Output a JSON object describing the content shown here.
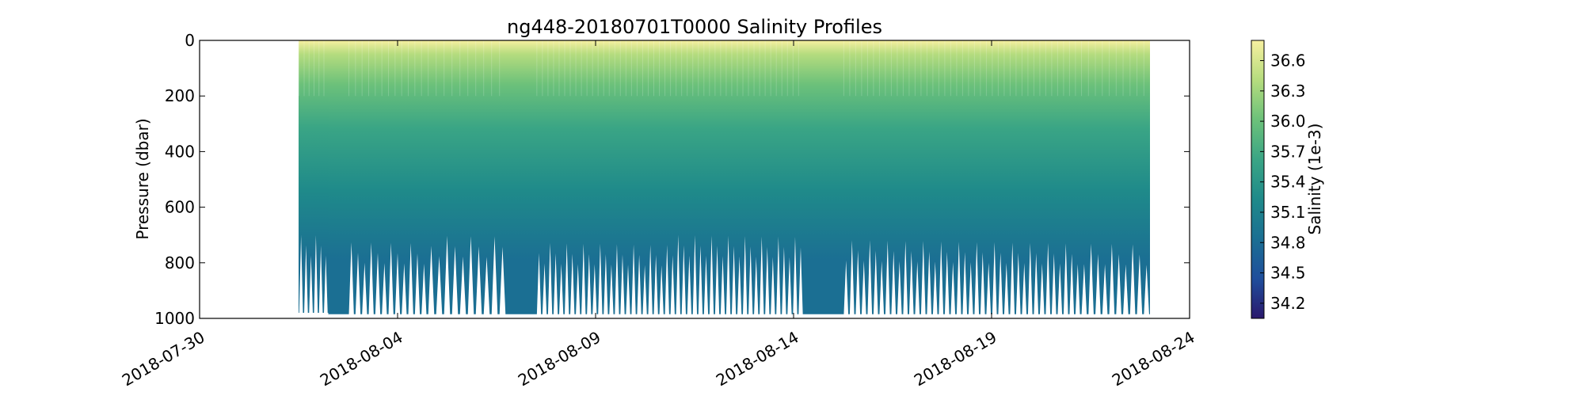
{
  "chart_data": {
    "type": "heatmap",
    "title": "ng448-20180701T0000 Salinity Profiles",
    "xlabel": "",
    "ylabel": "Pressure (dbar)",
    "x_ticks": [
      "2018-07-30",
      "2018-08-04",
      "2018-08-09",
      "2018-08-14",
      "2018-08-19",
      "2018-08-24"
    ],
    "xlim": [
      "2018-07-30",
      "2018-08-24"
    ],
    "y_ticks": [
      0,
      200,
      400,
      600,
      800,
      1000
    ],
    "ylim": [
      1000,
      0
    ],
    "y_inverted": true,
    "colorbar": {
      "label": "Salinity (1e-3)",
      "ticks": [
        34.2,
        34.5,
        34.8,
        35.1,
        35.4,
        35.7,
        36.0,
        36.3,
        36.6
      ],
      "range": [
        34.05,
        36.8
      ],
      "colormap": [
        "#2a186c",
        "#1f4e9c",
        "#1b6f93",
        "#1f8a8a",
        "#3aa585",
        "#6cc17a",
        "#b5dc7e",
        "#f7f0a0"
      ]
    },
    "data_extent": {
      "start": "2018-08-01T12:00",
      "end": "2018-08-23T00:00"
    },
    "profile_groups": [
      {
        "start": "2018-08-01T12:00",
        "end": "2018-08-02T06:00",
        "dives": 6,
        "max_depth": 980
      },
      {
        "start": "2018-08-02T06:00",
        "end": "2018-08-02T18:00",
        "dives": 0,
        "max_depth": 985
      },
      {
        "start": "2018-08-02T18:00",
        "end": "2018-08-04T18:00",
        "dives": 12,
        "max_depth": 985
      },
      {
        "start": "2018-08-04T18:00",
        "end": "2018-08-06T18:00",
        "dives": 10,
        "max_depth": 985
      },
      {
        "start": "2018-08-06T18:00",
        "end": "2018-08-07T12:00",
        "dives": 0,
        "max_depth": 985
      },
      {
        "start": "2018-08-07T12:00",
        "end": "2018-08-14T06:00",
        "dives": 48,
        "max_depth": 985
      },
      {
        "start": "2018-08-14T06:00",
        "end": "2018-08-15T06:00",
        "dives": 0,
        "max_depth": 985
      },
      {
        "start": "2018-08-15T06:00",
        "end": "2018-08-21T06:00",
        "dives": 40,
        "max_depth": 985
      },
      {
        "start": "2018-08-21T06:00",
        "end": "2018-08-23T00:00",
        "dives": 10,
        "max_depth": 985
      }
    ]
  }
}
